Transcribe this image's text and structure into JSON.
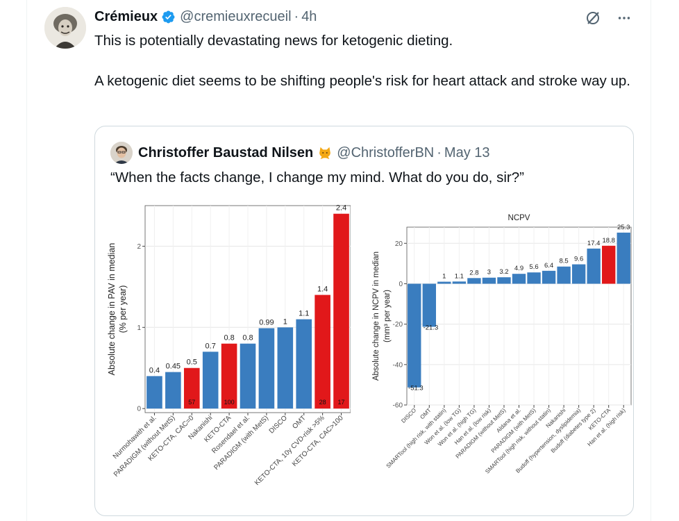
{
  "tweet": {
    "author_name": "Crémieux",
    "author_handle": "@cremieuxrecueil",
    "separator": "·",
    "time": "4h",
    "paragraphs": [
      "This is potentially devastating news for ketogenic dieting.",
      "A ketogenic diet seems to be shifting people's risk for heart attack and stroke way up."
    ]
  },
  "quoted_tweet": {
    "author_name": "Christoffer Baustad Nilsen",
    "author_handle": "@ChristofferBN",
    "separator": "·",
    "date": "May 13",
    "text": "“When the facts change, I change my mind. What do you do, sir?”"
  },
  "icons": {
    "verified": "verified-badge-icon",
    "grok": "grok-icon",
    "more": "more-icon",
    "cat": "cat-emoji-icon"
  },
  "colors": {
    "blue": "#3a7dbf",
    "red": "#e1181a",
    "verified": "#1d9bf0"
  },
  "chart_data": [
    {
      "type": "bar",
      "title": "",
      "ylabel_line1": "Absolute change in PAV in median",
      "ylabel_line2": "(% per year)",
      "ylim": [
        -0.05,
        2.5
      ],
      "yticks": [
        0,
        1,
        2
      ],
      "grid": true,
      "categories": [
        "Nurmohawith et al.",
        "PARADIGM (without MetS)",
        "KETO-CTA, CAC=0",
        "Nakanishi",
        "KETO-CTA",
        "Rosendael et al.",
        "PARADIGM (with MetS)",
        "DISCO",
        "OMT",
        "KETO-CTA, 10y CVD-risk >5%",
        "KETO-CTA, CAC>100"
      ],
      "values": [
        0.4,
        0.45,
        0.5,
        0.7,
        0.8,
        0.8,
        0.99,
        1,
        1.1,
        1.4,
        2.4
      ],
      "value_labels": [
        "0.4",
        "0.45",
        "0.5",
        "0.7",
        "0.8",
        "0.8",
        "0.99",
        "1",
        "1.1",
        "1.4",
        "2.4"
      ],
      "highlight": [
        false,
        false,
        true,
        false,
        true,
        false,
        false,
        false,
        false,
        true,
        true
      ],
      "inner_labels": [
        "",
        "",
        "57",
        "",
        "100",
        "",
        "",
        "",
        "",
        "28",
        "17"
      ]
    },
    {
      "type": "bar",
      "title": "NCPV",
      "ylabel_line1": "Absolute change in NCPV in median",
      "ylabel_line2": "(mm³ per year)",
      "ylim": [
        -60,
        28
      ],
      "yticks": [
        -60,
        -40,
        -20,
        0,
        20
      ],
      "grid": true,
      "categories": [
        "DISCO",
        "OMT",
        "SMARTool (high risk, with statin)",
        "Won et al. (low TG)",
        "Won et al. (high TG)",
        "Han et al. (low risk)",
        "PARADIGM (without MetS)",
        "Aldana et al.",
        "PARADIGM (with MetS)",
        "SMARTool (high risk, without statin)",
        "Nakanishi",
        "Budoff (hypertension, dyslipidemia)",
        "Budoff (diabetes type 2)",
        "KETO-CTA",
        "Han et al. (high risk)"
      ],
      "values": [
        -51.3,
        -21.3,
        1,
        1.1,
        2.8,
        3,
        3.2,
        4.9,
        5.6,
        6.4,
        8.5,
        9.6,
        17.4,
        18.8,
        25.3
      ],
      "value_labels": [
        "-51.3",
        "-21.3",
        "1",
        "1.1",
        "2.8",
        "3",
        "3.2",
        "4.9",
        "5.6",
        "6.4",
        "8.5",
        "9.6",
        "17.4",
        "18.8",
        "25.3"
      ],
      "highlight": [
        false,
        false,
        false,
        false,
        false,
        false,
        false,
        false,
        false,
        false,
        false,
        false,
        false,
        true,
        false
      ]
    }
  ]
}
